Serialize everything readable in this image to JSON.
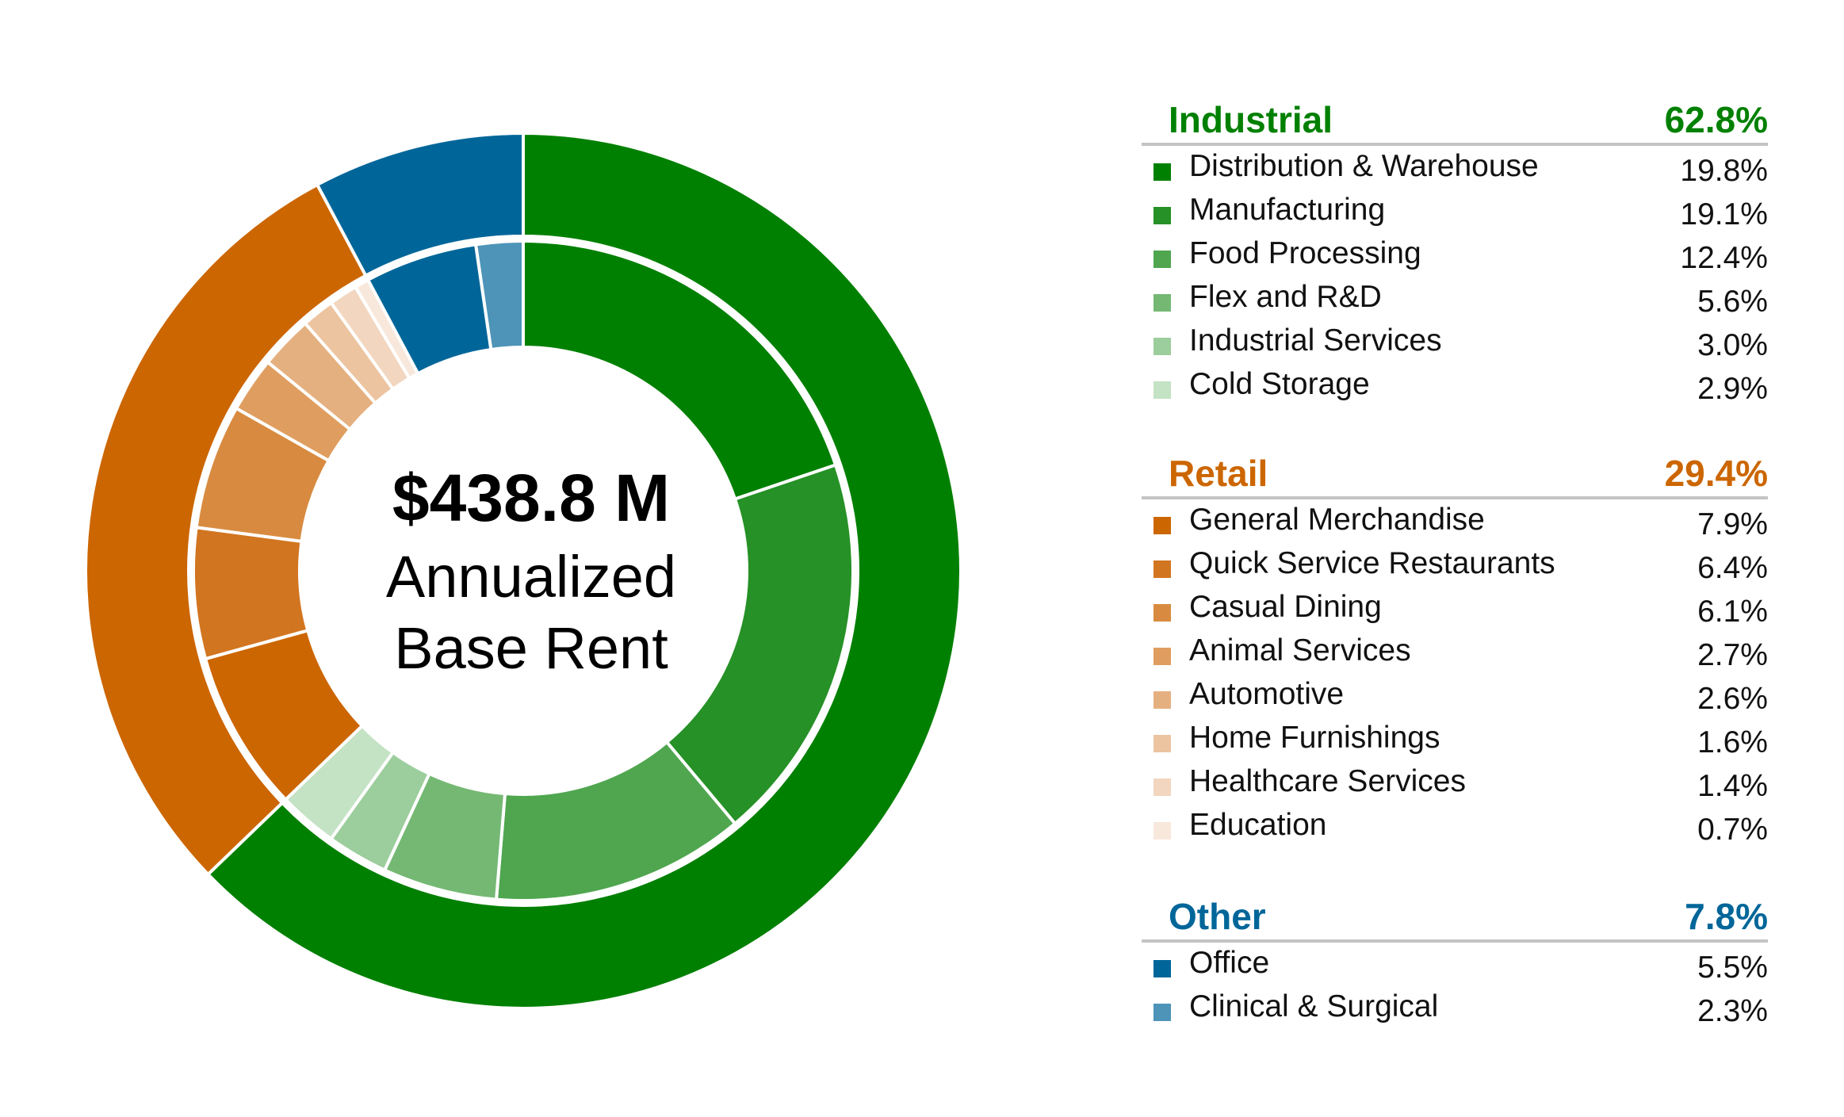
{
  "chart_data": {
    "type": "pie",
    "center": {
      "amount": "$438.8 M",
      "line1": "Annualized",
      "line2": "Base Rent"
    },
    "groups": [
      {
        "name": "Industrial",
        "pct_label": "62.8%",
        "value": 62.8,
        "color": "#008000",
        "items": [
          {
            "label": "Distribution & Warehouse",
            "pct_label": "19.8%",
            "value": 19.8,
            "color": "#008000"
          },
          {
            "label": "Manufacturing",
            "pct_label": "19.1%",
            "value": 19.1,
            "color": "#269126"
          },
          {
            "label": "Food Processing",
            "pct_label": "12.4%",
            "value": 12.4,
            "color": "#4fa64f"
          },
          {
            "label": "Flex and R&D",
            "pct_label": "5.6%",
            "value": 5.6,
            "color": "#74b874"
          },
          {
            "label": "Industrial Services",
            "pct_label": "3.0%",
            "value": 3.0,
            "color": "#9ccd9c"
          },
          {
            "label": "Cold Storage",
            "pct_label": "2.9%",
            "value": 2.9,
            "color": "#c4e2c4"
          }
        ]
      },
      {
        "name": "Retail",
        "pct_label": "29.4%",
        "value": 29.4,
        "color": "#cc6600",
        "items": [
          {
            "label": "General Merchandise",
            "pct_label": "7.9%",
            "value": 7.9,
            "color": "#cc6600"
          },
          {
            "label": "Quick Service Restaurants",
            "pct_label": "6.4%",
            "value": 6.4,
            "color": "#d27520"
          },
          {
            "label": "Casual Dining",
            "pct_label": "6.1%",
            "value": 6.1,
            "color": "#d88b40"
          },
          {
            "label": "Animal Services",
            "pct_label": "2.7%",
            "value": 2.7,
            "color": "#df9e60"
          },
          {
            "label": "Automotive",
            "pct_label": "2.6%",
            "value": 2.6,
            "color": "#e5b080"
          },
          {
            "label": "Home Furnishings",
            "pct_label": "1.6%",
            "value": 1.6,
            "color": "#ecc4a0"
          },
          {
            "label": "Healthcare Services",
            "pct_label": "1.4%",
            "value": 1.4,
            "color": "#f2d6bf"
          },
          {
            "label": "Education",
            "pct_label": "0.7%",
            "value": 0.7,
            "color": "#f8e8dc"
          }
        ]
      },
      {
        "name": "Other",
        "pct_label": "7.8%",
        "value": 7.8,
        "color": "#006699",
        "items": [
          {
            "label": "Office",
            "pct_label": "5.5%",
            "value": 5.5,
            "color": "#006699"
          },
          {
            "label": "Clinical & Surgical",
            "pct_label": "2.3%",
            "value": 2.3,
            "color": "#4d94b8"
          }
        ]
      }
    ]
  }
}
